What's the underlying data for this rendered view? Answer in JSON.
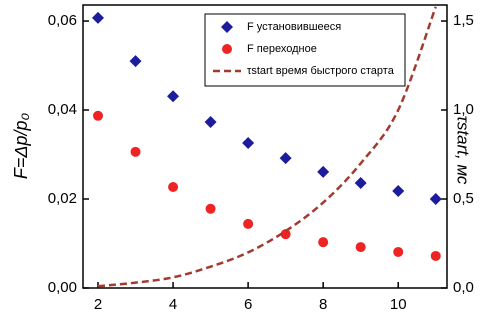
{
  "chart_data": {
    "type": "scatter",
    "ylabel": "F=Δp/p₀",
    "y2label": "τstart, мс",
    "xlim": [
      1.6,
      11.3
    ],
    "xticks": [
      2,
      4,
      6,
      8,
      10
    ],
    "ylim": [
      0,
      0.0636
    ],
    "yticks": [
      {
        "value": 0,
        "label": "0,00"
      },
      {
        "value": 0.02,
        "label": "0,02"
      },
      {
        "value": 0.04,
        "label": "0,04"
      },
      {
        "value": 0.06,
        "label": "0,06"
      }
    ],
    "y2lim": [
      0,
      1.59
    ],
    "y2ticks": [
      {
        "value": 0,
        "label": "0,0"
      },
      {
        "value": 0.5,
        "label": "0,5"
      },
      {
        "value": 1,
        "label": "1,0"
      },
      {
        "value": 1.5,
        "label": "1,5"
      }
    ],
    "legend": "top-center",
    "series": [
      {
        "name": "F установившееся",
        "color": "#1c1c9c",
        "marker": "diamond",
        "x": [
          2,
          3,
          4,
          5,
          6,
          7,
          8,
          9,
          10,
          11
        ],
        "values": [
          0.0607,
          0.051,
          0.0431,
          0.0373,
          0.0326,
          0.0292,
          0.0261,
          0.0236,
          0.0218,
          0.02
        ]
      },
      {
        "name": "F переходное",
        "color": "#ee2424",
        "marker": "circle",
        "x": [
          2,
          3,
          4,
          5,
          6,
          7,
          8,
          9,
          10,
          11
        ],
        "values": [
          0.0387,
          0.0306,
          0.0227,
          0.0178,
          0.0144,
          0.0121,
          0.0103,
          0.0092,
          0.0081,
          0.0072
        ]
      },
      {
        "name": "τstart время быстрого старта",
        "color": "#a33a30",
        "marker": "dashed-line",
        "axis": "y2",
        "x": [
          2,
          3,
          4,
          5,
          6,
          7,
          8,
          9,
          10,
          11
        ],
        "values": [
          0.01,
          0.03,
          0.06,
          0.12,
          0.2,
          0.32,
          0.48,
          0.7,
          1.0,
          1.58
        ]
      }
    ]
  }
}
